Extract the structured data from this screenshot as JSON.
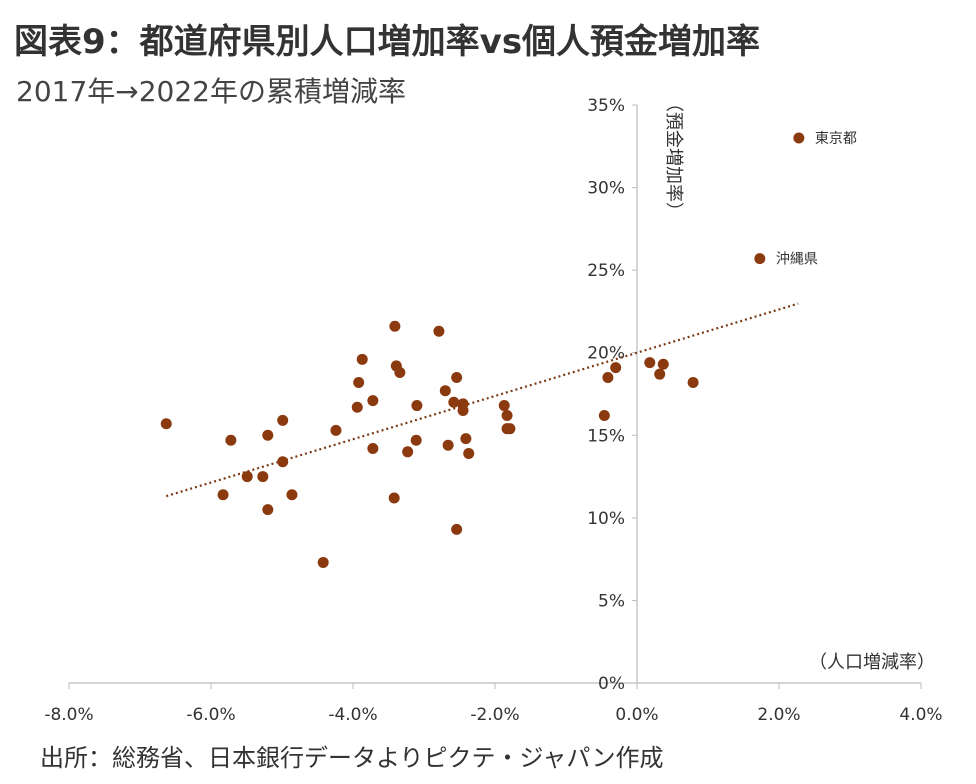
{
  "title": "図表9：都道府県別人口増加率vs個人預金増加率",
  "subtitle": "2017年→2022年の累積増減率",
  "source": "出所：総務省、日本銀行データよりピクテ・ジャパン作成",
  "chart_data": {
    "type": "scatter",
    "xlabel": "（人口増減率）",
    "ylabel": "（預金増加率）",
    "xlim": [
      -8,
      4
    ],
    "ylim": [
      0,
      35
    ],
    "x_ticks": [
      "-8.0%",
      "-6.0%",
      "-4.0%",
      "-2.0%",
      "0.0%",
      "2.0%",
      "4.0%"
    ],
    "y_ticks": [
      "0%",
      "5%",
      "10%",
      "15%",
      "20%",
      "25%",
      "30%",
      "35%"
    ],
    "grid": false,
    "point_color": "#8B3A0F",
    "trendline": {
      "style": "dotted",
      "color": "#7a3a14",
      "x_range": [
        -6.63,
        2.27
      ],
      "slope": 1.31,
      "intercept": 20.0
    },
    "points": [
      {
        "x": -6.63,
        "y": 15.7
      },
      {
        "x": -5.83,
        "y": 11.4
      },
      {
        "x": -5.72,
        "y": 14.7
      },
      {
        "x": -5.49,
        "y": 12.5
      },
      {
        "x": -5.27,
        "y": 12.5
      },
      {
        "x": -5.2,
        "y": 15.0
      },
      {
        "x": -5.2,
        "y": 10.5
      },
      {
        "x": -4.99,
        "y": 15.9
      },
      {
        "x": -4.99,
        "y": 13.4
      },
      {
        "x": -4.86,
        "y": 11.4
      },
      {
        "x": -4.42,
        "y": 7.3
      },
      {
        "x": -4.24,
        "y": 15.3
      },
      {
        "x": -3.94,
        "y": 16.7
      },
      {
        "x": -3.92,
        "y": 18.2
      },
      {
        "x": -3.87,
        "y": 19.6
      },
      {
        "x": -3.72,
        "y": 17.1
      },
      {
        "x": -3.72,
        "y": 14.2
      },
      {
        "x": -3.41,
        "y": 21.6
      },
      {
        "x": -3.39,
        "y": 19.2
      },
      {
        "x": -3.42,
        "y": 11.2
      },
      {
        "x": -3.34,
        "y": 18.8
      },
      {
        "x": -3.23,
        "y": 14.0
      },
      {
        "x": -3.11,
        "y": 14.7
      },
      {
        "x": -3.1,
        "y": 16.8
      },
      {
        "x": -2.79,
        "y": 21.3
      },
      {
        "x": -2.7,
        "y": 17.7
      },
      {
        "x": -2.66,
        "y": 14.4
      },
      {
        "x": -2.58,
        "y": 17.0
      },
      {
        "x": -2.54,
        "y": 18.5
      },
      {
        "x": -2.45,
        "y": 16.9
      },
      {
        "x": -2.45,
        "y": 16.5
      },
      {
        "x": -2.54,
        "y": 9.3
      },
      {
        "x": -2.41,
        "y": 14.8
      },
      {
        "x": -2.37,
        "y": 13.9
      },
      {
        "x": -1.87,
        "y": 16.8
      },
      {
        "x": -1.83,
        "y": 16.2
      },
      {
        "x": -1.83,
        "y": 15.4
      },
      {
        "x": -1.79,
        "y": 15.4
      },
      {
        "x": -0.46,
        "y": 16.2
      },
      {
        "x": -0.41,
        "y": 18.5
      },
      {
        "x": -0.3,
        "y": 19.1
      },
      {
        "x": 0.18,
        "y": 19.4
      },
      {
        "x": 0.32,
        "y": 18.7
      },
      {
        "x": 0.37,
        "y": 19.3
      },
      {
        "x": 0.79,
        "y": 18.2
      },
      {
        "x": 1.73,
        "y": 25.7,
        "label": "沖縄県"
      },
      {
        "x": 2.28,
        "y": 33.0,
        "label": "東京都"
      }
    ]
  }
}
